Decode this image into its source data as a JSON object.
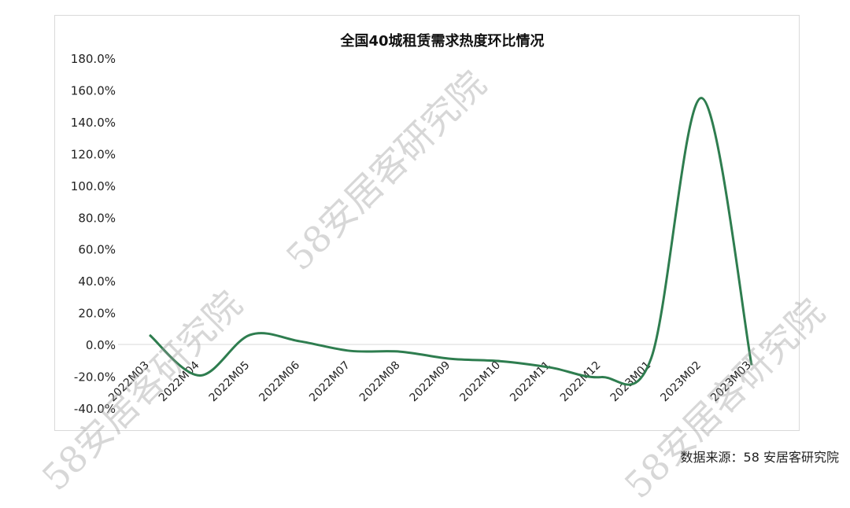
{
  "chart_data": {
    "type": "line",
    "title": "全国40城租赁需求热度环比情况",
    "categories": [
      "2022M03",
      "2022M04",
      "2022M05",
      "2022M06",
      "2022M07",
      "2022M08",
      "2022M09",
      "2022M10",
      "2022M11",
      "2022M12",
      "2023M01",
      "2023M02",
      "2023M03"
    ],
    "series": [
      {
        "values": [
          6.0,
          -19.5,
          6.0,
          2.0,
          -4.0,
          -4.5,
          -9.0,
          -10.5,
          -14.5,
          -20.5,
          -8.5,
          155.0,
          -13.0
        ]
      }
    ],
    "ylim": [
      -40,
      180
    ],
    "yticks": [
      "180.0%",
      "160.0%",
      "140.0%",
      "120.0%",
      "100.0%",
      "80.0%",
      "60.0%",
      "40.0%",
      "20.0%",
      "0.0%",
      "-20.0%",
      "-40.0%"
    ],
    "line_color": "#2e7d4f",
    "grid": false,
    "legend": "none"
  },
  "source_note": "数据来源：58 安居客研究院",
  "watermark_text": "58安居客研究院"
}
